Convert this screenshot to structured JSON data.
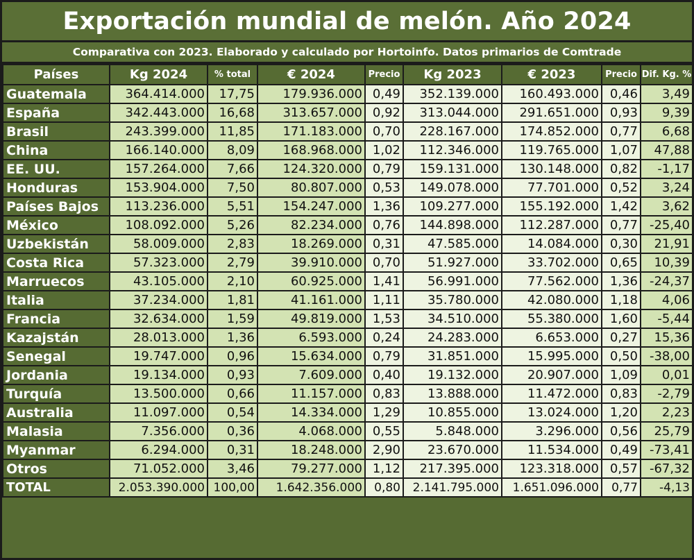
{
  "title": "Exportación mundial de melón. Año 2024",
  "subtitle": "Comparativa con 2023. Elaborado y calculado por Hortoinfo. Datos primarios de Comtrade",
  "colors": {
    "header_bg": "#566b33",
    "cell_green": "#d3e3b3",
    "cell_pale": "#eef4e1",
    "border": "#1b1b1b"
  },
  "table": {
    "headers": [
      "Países",
      "Kg 2024",
      "% total",
      "€ 2024",
      "Precio",
      "Kg 2023",
      "€ 2023",
      "Precio",
      "Dif. Kg. %"
    ],
    "rows": [
      [
        "Guatemala",
        "364.414.000",
        "17,75",
        "179.936.000",
        "0,49",
        "352.139.000",
        "160.493.000",
        "0,46",
        "3,49"
      ],
      [
        "España",
        "342.443.000",
        "16,68",
        "313.657.000",
        "0,92",
        "313.044.000",
        "291.651.000",
        "0,93",
        "9,39"
      ],
      [
        "Brasil",
        "243.399.000",
        "11,85",
        "171.183.000",
        "0,70",
        "228.167.000",
        "174.852.000",
        "0,77",
        "6,68"
      ],
      [
        "China",
        "166.140.000",
        "8,09",
        "168.968.000",
        "1,02",
        "112.346.000",
        "119.765.000",
        "1,07",
        "47,88"
      ],
      [
        "EE. UU.",
        "157.264.000",
        "7,66",
        "124.320.000",
        "0,79",
        "159.131.000",
        "130.148.000",
        "0,82",
        "-1,17"
      ],
      [
        "Honduras",
        "153.904.000",
        "7,50",
        "80.807.000",
        "0,53",
        "149.078.000",
        "77.701.000",
        "0,52",
        "3,24"
      ],
      [
        "Países Bajos",
        "113.236.000",
        "5,51",
        "154.247.000",
        "1,36",
        "109.277.000",
        "155.192.000",
        "1,42",
        "3,62"
      ],
      [
        "México",
        "108.092.000",
        "5,26",
        "82.234.000",
        "0,76",
        "144.898.000",
        "112.287.000",
        "0,77",
        "-25,40"
      ],
      [
        "Uzbekistán",
        "58.009.000",
        "2,83",
        "18.269.000",
        "0,31",
        "47.585.000",
        "14.084.000",
        "0,30",
        "21,91"
      ],
      [
        "Costa Rica",
        "57.323.000",
        "2,79",
        "39.910.000",
        "0,70",
        "51.927.000",
        "33.702.000",
        "0,65",
        "10,39"
      ],
      [
        "Marruecos",
        "43.105.000",
        "2,10",
        "60.925.000",
        "1,41",
        "56.991.000",
        "77.562.000",
        "1,36",
        "-24,37"
      ],
      [
        "Italia",
        "37.234.000",
        "1,81",
        "41.161.000",
        "1,11",
        "35.780.000",
        "42.080.000",
        "1,18",
        "4,06"
      ],
      [
        "Francia",
        "32.634.000",
        "1,59",
        "49.819.000",
        "1,53",
        "34.510.000",
        "55.380.000",
        "1,60",
        "-5,44"
      ],
      [
        "Kazajstán",
        "28.013.000",
        "1,36",
        "6.593.000",
        "0,24",
        "24.283.000",
        "6.653.000",
        "0,27",
        "15,36"
      ],
      [
        "Senegal",
        "19.747.000",
        "0,96",
        "15.634.000",
        "0,79",
        "31.851.000",
        "15.995.000",
        "0,50",
        "-38,00"
      ],
      [
        "Jordania",
        "19.134.000",
        "0,93",
        "7.609.000",
        "0,40",
        "19.132.000",
        "20.907.000",
        "1,09",
        "0,01"
      ],
      [
        "Turquía",
        "13.500.000",
        "0,66",
        "11.157.000",
        "0,83",
        "13.888.000",
        "11.472.000",
        "0,83",
        "-2,79"
      ],
      [
        "Australia",
        "11.097.000",
        "0,54",
        "14.334.000",
        "1,29",
        "10.855.000",
        "13.024.000",
        "1,20",
        "2,23"
      ],
      [
        "Malasia",
        "7.356.000",
        "0,36",
        "4.068.000",
        "0,55",
        "5.848.000",
        "3.296.000",
        "0,56",
        "25,79"
      ],
      [
        "Myanmar",
        "6.294.000",
        "0,31",
        "18.248.000",
        "2,90",
        "23.670.000",
        "11.534.000",
        "0,49",
        "-73,41"
      ],
      [
        "Otros",
        "71.052.000",
        "3,46",
        "79.277.000",
        "1,12",
        "217.395.000",
        "123.318.000",
        "0,57",
        "-67,32"
      ],
      [
        "TOTAL",
        "2.053.390.000",
        "100,00",
        "1.642.356.000",
        "0,80",
        "2.141.795.000",
        "1.651.096.000",
        "0,77",
        "-4,13"
      ]
    ]
  }
}
